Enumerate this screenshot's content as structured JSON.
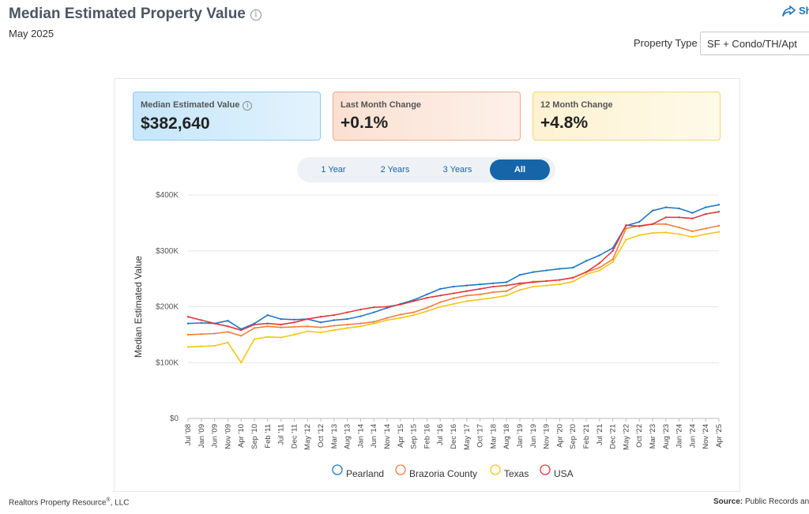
{
  "header": {
    "title": "Median Estimated Property Value",
    "subtitle": "May 2025",
    "share_label": "Sh",
    "property_type_label": "Property Type",
    "property_type_value": "SF + Condo/TH/Apt"
  },
  "cards": [
    {
      "label": "Median Estimated Value",
      "value": "$382,640"
    },
    {
      "label": "Last Month Change",
      "value": "+0.1%"
    },
    {
      "label": "12 Month Change",
      "value": "+4.8%"
    }
  ],
  "range_buttons": [
    "1 Year",
    "2 Years",
    "3 Years",
    "All"
  ],
  "active_range": "All",
  "footer": {
    "credit": "Realtors Property Resource",
    "credit_mark": "®",
    "credit_suffix": ", LLC",
    "source_label": "Source:",
    "source_text": "Public Records an"
  },
  "colors": {
    "Pearland": "#1f77c4",
    "Brazoria County": "#f07f3c",
    "Texas": "#f5c518",
    "USA": "#e0383e",
    "accent": "#1565a8"
  },
  "chart_data": {
    "type": "line",
    "ylabel": "Median Estimated Value",
    "ylim": [
      0,
      400000
    ],
    "y_ticks": [
      "$0",
      "$100K",
      "$200K",
      "$300K",
      "$400K"
    ],
    "x_tick_labels": [
      "Jul '08",
      "Jan '09",
      "Jun '09",
      "Nov '09",
      "Apr '10",
      "Sep '10",
      "Feb '11",
      "Jul '11",
      "Dec '11",
      "May '12",
      "Oct '12",
      "Mar '13",
      "Aug '13",
      "Jan '14",
      "Jun '14",
      "Nov '14",
      "Apr '15",
      "Sep '15",
      "Feb '16",
      "Jul '16",
      "Dec '16",
      "May '17",
      "Oct '17",
      "Mar '18",
      "Aug '18",
      "Jan '19",
      "Jun '19",
      "Nov '19",
      "Apr '20",
      "Sep '20",
      "Feb '21",
      "Jul '21",
      "Dec '21",
      "May '22",
      "Oct '22",
      "Mar '23",
      "Aug '23",
      "Jan '24",
      "Jun '24",
      "Nov '24",
      "Apr '25"
    ],
    "legend_position": "bottom",
    "x": [
      "2008-07",
      "2009-01",
      "2009-06",
      "2009-11",
      "2010-04",
      "2010-09",
      "2011-02",
      "2011-07",
      "2011-12",
      "2012-05",
      "2012-10",
      "2013-03",
      "2013-08",
      "2014-01",
      "2014-06",
      "2014-11",
      "2015-04",
      "2015-09",
      "2016-02",
      "2016-07",
      "2016-12",
      "2017-05",
      "2017-10",
      "2018-03",
      "2018-08",
      "2019-01",
      "2019-06",
      "2019-11",
      "2020-04",
      "2020-09",
      "2021-02",
      "2021-07",
      "2021-12",
      "2022-05",
      "2022-10",
      "2023-03",
      "2023-08",
      "2024-01",
      "2024-06",
      "2024-11",
      "2025-04"
    ],
    "series": [
      {
        "name": "Pearland",
        "values": [
          170000,
          171000,
          170000,
          175000,
          160000,
          170000,
          185000,
          178000,
          177000,
          178000,
          172000,
          176000,
          178000,
          183000,
          190000,
          198000,
          205000,
          212000,
          222000,
          232000,
          236000,
          238000,
          240000,
          242000,
          244000,
          257000,
          262000,
          265000,
          268000,
          270000,
          282000,
          292000,
          305000,
          345000,
          352000,
          372000,
          378000,
          376000,
          368000,
          378000,
          382640
        ]
      },
      {
        "name": "Brazoria County",
        "values": [
          150000,
          151000,
          152000,
          155000,
          148000,
          162000,
          165000,
          163000,
          164000,
          165000,
          163000,
          166000,
          168000,
          170000,
          173000,
          180000,
          186000,
          190000,
          198000,
          208000,
          215000,
          220000,
          222000,
          226000,
          228000,
          240000,
          245000,
          246000,
          248000,
          252000,
          262000,
          270000,
          285000,
          340000,
          345000,
          348000,
          348000,
          342000,
          335000,
          340000,
          345000
        ]
      },
      {
        "name": "Texas",
        "values": [
          128000,
          129000,
          130000,
          136000,
          100000,
          142000,
          146000,
          145000,
          150000,
          156000,
          154000,
          158000,
          162000,
          165000,
          170000,
          176000,
          180000,
          185000,
          192000,
          200000,
          205000,
          210000,
          213000,
          216000,
          220000,
          230000,
          236000,
          238000,
          240000,
          245000,
          258000,
          265000,
          280000,
          320000,
          328000,
          332000,
          333000,
          330000,
          325000,
          330000,
          334000
        ]
      },
      {
        "name": "USA",
        "values": [
          182000,
          176000,
          170000,
          165000,
          158000,
          168000,
          170000,
          168000,
          172000,
          178000,
          182000,
          185000,
          190000,
          195000,
          199000,
          200000,
          204000,
          210000,
          216000,
          220000,
          224000,
          228000,
          232000,
          236000,
          238000,
          242000,
          244000,
          246000,
          248000,
          252000,
          262000,
          278000,
          300000,
          346000,
          344000,
          348000,
          360000,
          360000,
          358000,
          366000,
          370000
        ]
      }
    ]
  }
}
